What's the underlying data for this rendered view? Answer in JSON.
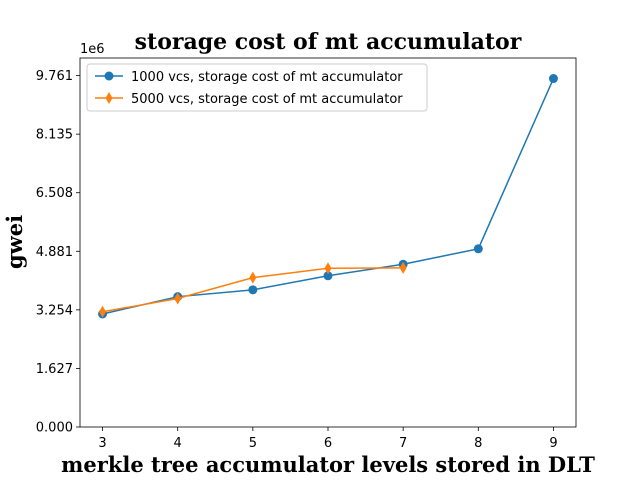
{
  "chart_data": {
    "type": "line",
    "title": "storage cost of mt accumulator",
    "xlabel": "merkle tree accumulator levels stored in DLT",
    "ylabel": "gwei",
    "y_offset_label": "1e6",
    "xlim": [
      2.7,
      9.3
    ],
    "ylim": [
      0,
      10.25
    ],
    "x_ticks": [
      3,
      4,
      5,
      6,
      7,
      8,
      9
    ],
    "y_ticks": [
      0.0,
      1.627,
      3.254,
      4.881,
      6.508,
      8.135,
      9.761
    ],
    "y_tick_labels": [
      "0.000",
      "1.627",
      "3.254",
      "4.881",
      "6.508",
      "8.135",
      "9.761"
    ],
    "grid": false,
    "legend_position": "top-left",
    "series": [
      {
        "name": "1000 vcs, storage cost of mt accumulator",
        "color": "#1f77b4",
        "marker": "circle",
        "x": [
          3,
          4,
          5,
          6,
          7,
          8,
          9
        ],
        "values": [
          3.14,
          3.62,
          3.81,
          4.2,
          4.52,
          4.95,
          9.68
        ]
      },
      {
        "name": "5000 vcs, storage cost of mt accumulator",
        "color": "#ff7f0e",
        "marker": "diamond",
        "x": [
          3,
          4,
          5,
          6,
          7
        ],
        "values": [
          3.2,
          3.57,
          4.15,
          4.41,
          4.42
        ]
      }
    ]
  }
}
